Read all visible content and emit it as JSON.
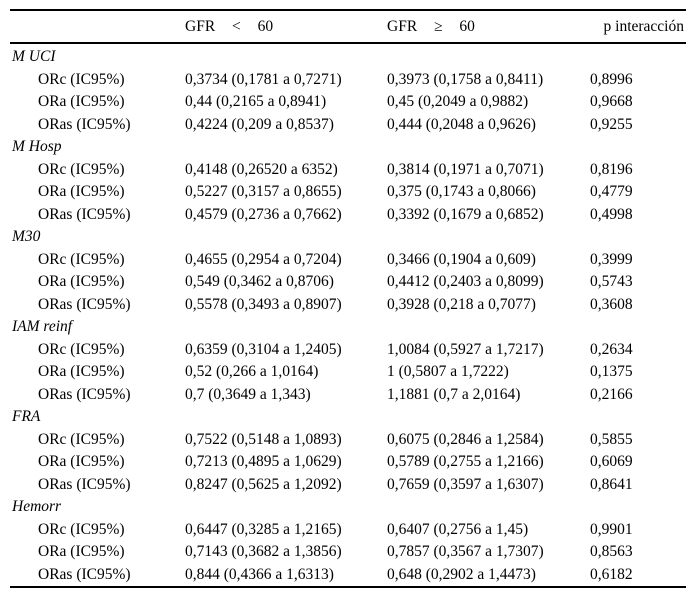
{
  "table": {
    "headers": {
      "col0": "",
      "col1": "GFR < 60",
      "col2": "GFR ≥ 60",
      "col3": "p interacción"
    },
    "sections": [
      {
        "label": "M UCI",
        "rows": [
          {
            "label": "ORc (IC95%)",
            "gfr_lt60": "0,3734 (0,1781 a 0,7271)",
            "gfr_ge60": "0,3973 (0,1758 a 0,8411)",
            "p": "0,8996"
          },
          {
            "label": "ORa (IC95%)",
            "gfr_lt60": "0,44 (0,2165 a 0,8941)",
            "gfr_ge60": "0,45 (0,2049 a 0,9882)",
            "p": "0,9668"
          },
          {
            "label": "ORas (IC95%)",
            "gfr_lt60": "0,4224 (0,209 a 0,8537)",
            "gfr_ge60": "0,444 (0,2048 a 0,9626)",
            "p": "0,9255"
          }
        ]
      },
      {
        "label": "M Hosp",
        "rows": [
          {
            "label": "ORc (IC95%)",
            "gfr_lt60": "0,4148 (0,26520 a 6352)",
            "gfr_ge60": "0,3814 (0,1971 a 0,7071)",
            "p": "0,8196"
          },
          {
            "label": "ORa (IC95%)",
            "gfr_lt60": "0,5227 (0,3157 a 0,8655)",
            "gfr_ge60": "0,375 (0,1743 a 0,8066)",
            "p": "0,4779"
          },
          {
            "label": "ORas (IC95%)",
            "gfr_lt60": "0,4579 (0,2736 a 0,7662)",
            "gfr_ge60": "0,3392 (0,1679 a 0,6852)",
            "p": "0,4998"
          }
        ]
      },
      {
        "label": "M30",
        "rows": [
          {
            "label": "ORc (IC95%)",
            "gfr_lt60": "0,4655 (0,2954 a 0,7204)",
            "gfr_ge60": "0,3466 (0,1904 a 0,609)",
            "p": "0,3999"
          },
          {
            "label": "ORa (IC95%)",
            "gfr_lt60": "0,549 (0,3462 a 0,8706)",
            "gfr_ge60": "0,4412 (0,2403 a 0,8099)",
            "p": "0,5743"
          },
          {
            "label": "ORas (IC95%)",
            "gfr_lt60": "0,5578 (0,3493 a 0,8907)",
            "gfr_ge60": "0,3928 (0,218 a 0,7077)",
            "p": "0,3608"
          }
        ]
      },
      {
        "label": "IAM reinf",
        "rows": [
          {
            "label": "ORc (IC95%)",
            "gfr_lt60": "0,6359 (0,3104 a 1,2405)",
            "gfr_ge60": "1,0084 (0,5927 a 1,7217)",
            "p": "0,2634"
          },
          {
            "label": "ORa (IC95%)",
            "gfr_lt60": "0,52 (0,266 a 1,0164)",
            "gfr_ge60": "1 (0,5807 a 1,7222)",
            "p": "0,1375"
          },
          {
            "label": "ORas (IC95%)",
            "gfr_lt60": "0,7 (0,3649 a 1,343)",
            "gfr_ge60": "1,1881 (0,7 a 2,0164)",
            "p": "0,2166"
          }
        ]
      },
      {
        "label": "FRA",
        "rows": [
          {
            "label": "ORc (IC95%)",
            "gfr_lt60": "0,7522 (0,5148 a 1,0893)",
            "gfr_ge60": "0,6075 (0,2846 a 1,2584)",
            "p": "0,5855"
          },
          {
            "label": "ORa (IC95%)",
            "gfr_lt60": "0,7213 (0,4895 a 1,0629)",
            "gfr_ge60": "0,5789 (0,2755 a 1,2166)",
            "p": "0,6069"
          },
          {
            "label": "ORas (IC95%)",
            "gfr_lt60": "0,8247 (0,5625 a 1,2092)",
            "gfr_ge60": "0,7659 (0,3597 a 1,6307)",
            "p": "0,8641"
          }
        ]
      },
      {
        "label": "Hemorr",
        "rows": [
          {
            "label": "ORc (IC95%)",
            "gfr_lt60": "0,6447 (0,3285 a 1,2165)",
            "gfr_ge60": "0,6407 (0,2756 a 1,45)",
            "p": "0,9901"
          },
          {
            "label": "ORa (IC95%)",
            "gfr_lt60": "0,7143 (0,3682 a 1,3856)",
            "gfr_ge60": "0,7857 (0,3567 a 1,7307)",
            "p": "0,8563"
          },
          {
            "label": "ORas (IC95%)",
            "gfr_lt60": "0,844 (0,4366 a 1,6313)",
            "gfr_ge60": "0,648 (0,2902 a 1,4473)",
            "p": "0,6182"
          }
        ]
      }
    ]
  }
}
